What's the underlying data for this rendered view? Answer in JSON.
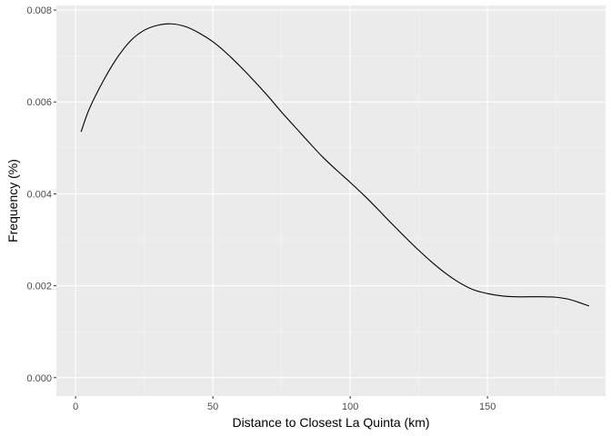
{
  "chart_data": {
    "type": "line",
    "title": "",
    "xlabel": "Distance to Closest La Quinta (km)",
    "ylabel": "Frequency (%)",
    "xlim": [
      -7,
      193
    ],
    "ylim": [
      -0.0004,
      0.0081
    ],
    "x_ticks": [
      0,
      50,
      100,
      150
    ],
    "x_tick_labels": [
      "0",
      "50",
      "100",
      "150"
    ],
    "x_minor_ticks": [
      25,
      75,
      125,
      175
    ],
    "y_ticks": [
      0,
      0.002,
      0.004,
      0.006,
      0.008
    ],
    "y_tick_labels": [
      "0.000",
      "0.002",
      "0.004",
      "0.006",
      "0.008"
    ],
    "y_minor_ticks": [
      0.001,
      0.003,
      0.005,
      0.007
    ],
    "grid": true,
    "legend": "none",
    "colors": {
      "panel_background": "#ebebeb",
      "grid_major": "#ffffff",
      "grid_minor": "#f7f7f7",
      "line": "#000000",
      "tick_mark": "#333333"
    },
    "series": [
      {
        "x": [
          2,
          5,
          10,
          15,
          20,
          25,
          30,
          35,
          40,
          45,
          50,
          55,
          60,
          65,
          70,
          75,
          80,
          85,
          90,
          95,
          100,
          105,
          110,
          115,
          120,
          125,
          130,
          135,
          140,
          145,
          150,
          155,
          160,
          165,
          170,
          175,
          180,
          187
        ],
        "y": [
          0.00535,
          0.00585,
          0.00645,
          0.00695,
          0.00733,
          0.00756,
          0.00767,
          0.0077,
          0.00764,
          0.0075,
          0.00731,
          0.00706,
          0.00677,
          0.00646,
          0.00613,
          0.00578,
          0.00545,
          0.00512,
          0.0048,
          0.00452,
          0.00425,
          0.00397,
          0.00367,
          0.00336,
          0.00306,
          0.00277,
          0.0025,
          0.00226,
          0.00206,
          0.00191,
          0.00183,
          0.00178,
          0.00176,
          0.00176,
          0.00176,
          0.00175,
          0.0017,
          0.00156
        ]
      }
    ]
  }
}
